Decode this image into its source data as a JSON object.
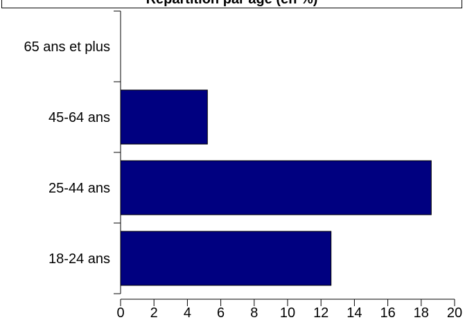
{
  "chart_data": {
    "type": "bar",
    "orientation": "horizontal",
    "title": "Répartition par âge (en %)",
    "categories": [
      "65 ans et plus",
      "45-64 ans",
      "25-44 ans",
      "18-24 ans"
    ],
    "values": [
      0,
      5.2,
      18.6,
      12.6
    ],
    "xlim": [
      0,
      20
    ],
    "xticks": [
      "0",
      "2",
      "4",
      "6",
      "8",
      "10",
      "12",
      "14",
      "16",
      "18",
      "20"
    ],
    "xlabel": "",
    "ylabel": "",
    "bar_color": "#000080",
    "grid": false
  }
}
